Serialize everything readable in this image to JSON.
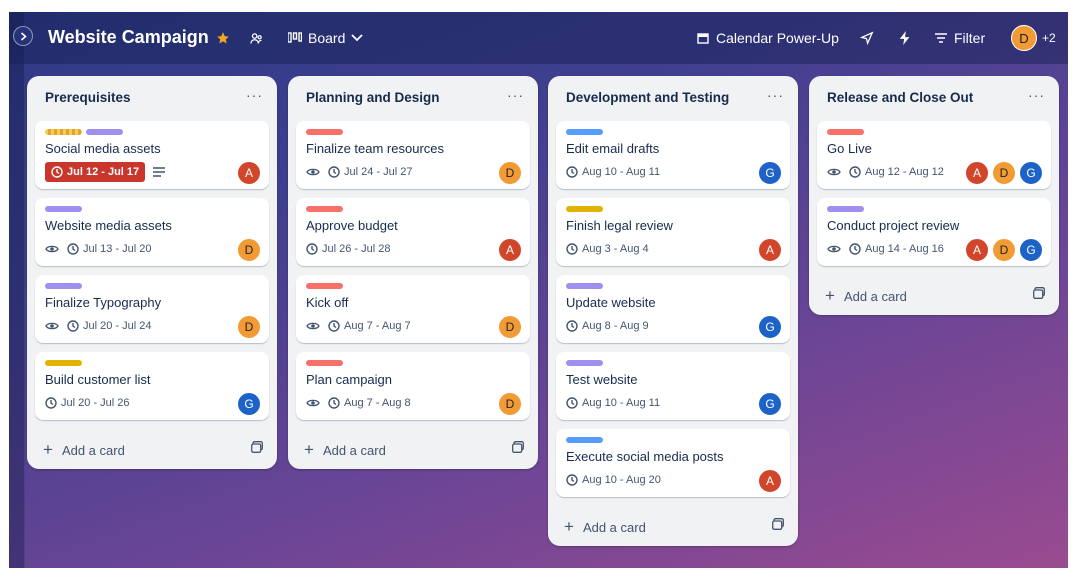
{
  "header": {
    "board_title": "Website Campaign",
    "view": "Board",
    "calendar_powerup": "Calendar Power-Up",
    "filter": "Filter",
    "member_avatar": "D",
    "extra_members": "+2"
  },
  "colors": {
    "green": "#4bce97",
    "red": "#f87168",
    "purple": "#9f8fef",
    "blue": "#579dff",
    "orange": "#e2b203"
  },
  "lists": [
    {
      "title": "Prerequisites",
      "add_card": "Add a card",
      "cards": [
        {
          "title": "Social media assets",
          "labels": [
            "wavy",
            "purple"
          ],
          "date": "Jul 12 - Jul 17",
          "overdue": true,
          "description": true,
          "watch": false,
          "members": [
            "A"
          ]
        },
        {
          "title": "Website media assets",
          "labels": [
            "purple"
          ],
          "date": "Jul 13 - Jul 20",
          "overdue": false,
          "watch": true,
          "members": [
            "D"
          ]
        },
        {
          "title": "Finalize Typography",
          "labels": [
            "purple"
          ],
          "date": "Jul 20 - Jul 24",
          "overdue": false,
          "watch": true,
          "members": [
            "D"
          ]
        },
        {
          "title": "Build customer list",
          "labels": [
            "orange"
          ],
          "date": "Jul 20 - Jul 26",
          "overdue": false,
          "watch": false,
          "members": [
            "G"
          ]
        }
      ]
    },
    {
      "title": "Planning and Design",
      "add_card": "Add a card",
      "cards": [
        {
          "title": "Finalize team resources",
          "labels": [
            "red"
          ],
          "date": "Jul 24 - Jul 27",
          "watch": true,
          "members": [
            "D"
          ]
        },
        {
          "title": "Approve budget",
          "labels": [
            "red"
          ],
          "date": "Jul 26 - Jul 28",
          "watch": false,
          "members": [
            "A"
          ]
        },
        {
          "title": "Kick off",
          "labels": [
            "red"
          ],
          "date": "Aug 7 - Aug 7",
          "watch": true,
          "members": [
            "D"
          ]
        },
        {
          "title": "Plan campaign",
          "labels": [
            "red"
          ],
          "date": "Aug 7 - Aug 8",
          "watch": true,
          "members": [
            "D"
          ]
        }
      ]
    },
    {
      "title": "Development and Testing",
      "add_card": "Add a card",
      "cards": [
        {
          "title": "Edit email drafts",
          "labels": [
            "blue"
          ],
          "date": "Aug 10 - Aug 11",
          "watch": false,
          "members": [
            "G"
          ]
        },
        {
          "title": "Finish legal review",
          "labels": [
            "orange"
          ],
          "date": "Aug 3 - Aug 4",
          "watch": false,
          "members": [
            "A"
          ]
        },
        {
          "title": "Update website",
          "labels": [
            "purple"
          ],
          "date": "Aug 8 - Aug 9",
          "watch": false,
          "members": [
            "G"
          ]
        },
        {
          "title": "Test website",
          "labels": [
            "purple"
          ],
          "date": "Aug 10 - Aug 11",
          "watch": false,
          "members": [
            "G"
          ]
        },
        {
          "title": "Execute social media posts",
          "labels": [
            "blue"
          ],
          "date": "Aug 10 - Aug 20",
          "watch": false,
          "members": [
            "A"
          ]
        }
      ]
    },
    {
      "title": "Release and Close Out",
      "add_card": "Add a card",
      "cards": [
        {
          "title": "Go Live",
          "labels": [
            "red"
          ],
          "date": "Aug 12 - Aug 12",
          "watch": true,
          "members": [
            "A",
            "D",
            "G"
          ]
        },
        {
          "title": "Conduct project review",
          "labels": [
            "purple"
          ],
          "date": "Aug 14 - Aug 16",
          "watch": true,
          "members": [
            "A",
            "D",
            "G"
          ]
        }
      ]
    }
  ]
}
